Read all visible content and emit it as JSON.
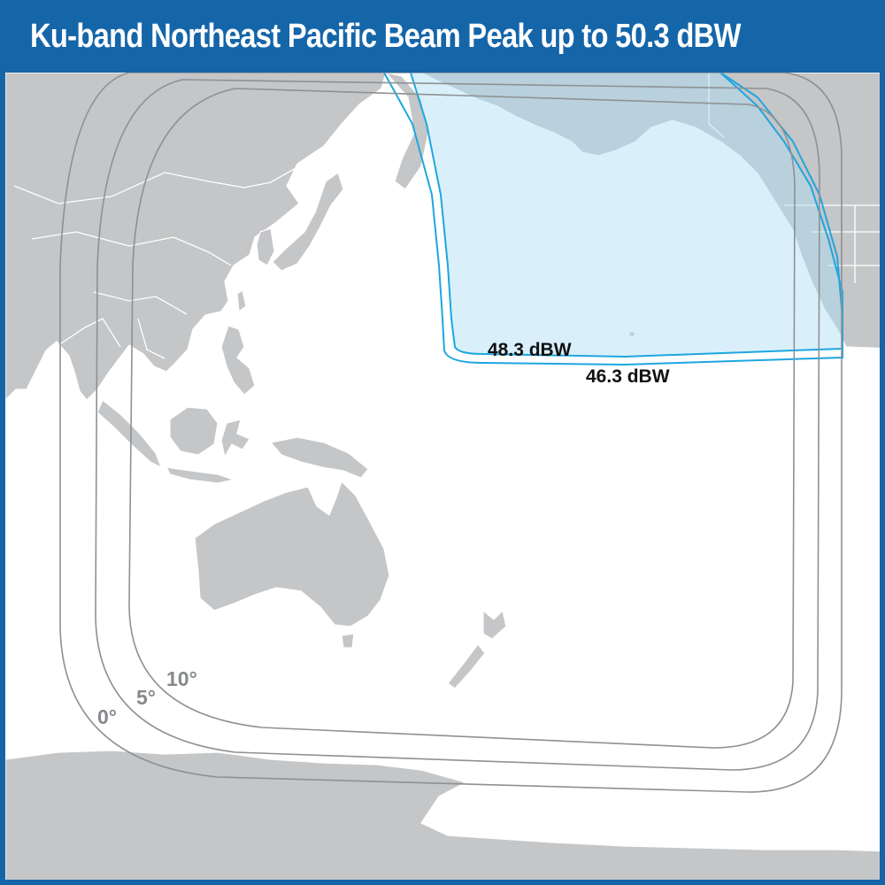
{
  "title": "Ku-band Northeast Pacific Beam Peak up to 50.3 dBW",
  "colors": {
    "header": "#1565a9",
    "land": "#c4c6c8",
    "beam_fill": "#d6f0fb",
    "beam_line": "#1ea6e0",
    "elevation_line": "#8e9194"
  },
  "beam_contours": [
    {
      "label": "48.3 dBW"
    },
    {
      "label": "46.3 dBW"
    }
  ],
  "elevation_contours": [
    {
      "label": "0°"
    },
    {
      "label": "5°"
    },
    {
      "label": "10°"
    }
  ]
}
